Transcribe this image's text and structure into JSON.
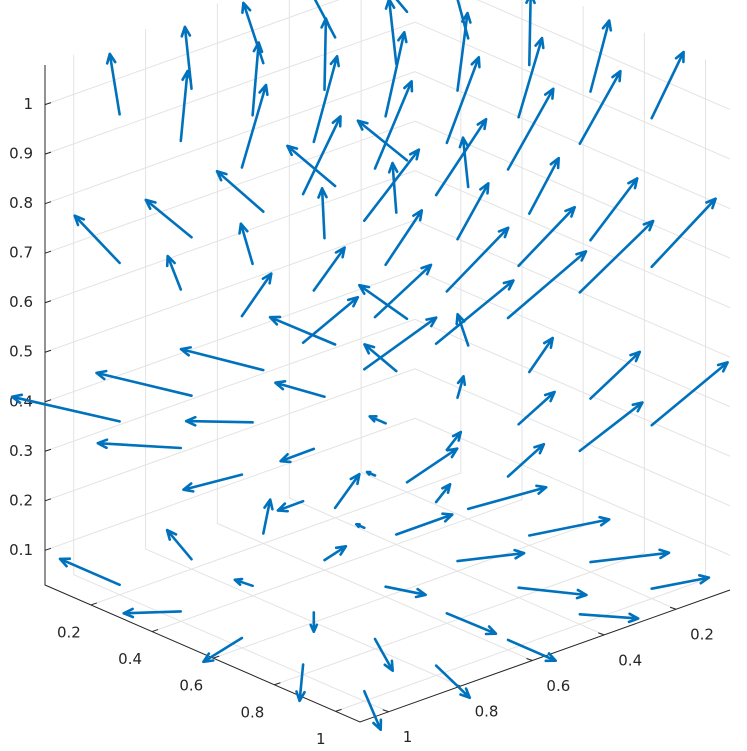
{
  "chart_data": {
    "type": "quiver3",
    "color": "#0072bd",
    "grid": true,
    "xlim": [
      0.05,
      1.08
    ],
    "ylim": [
      0.05,
      1.08
    ],
    "zlim": [
      0.03,
      1.08
    ],
    "xticks": [
      0.2,
      0.4,
      0.6,
      0.8,
      1
    ],
    "yticks": [
      0.2,
      0.4,
      0.6,
      0.8,
      1
    ],
    "zticks": [
      0.1,
      0.2,
      0.3,
      0.4,
      0.5,
      0.6,
      0.7,
      0.8,
      0.9,
      1
    ],
    "x": [
      0.2,
      0.2,
      0.2,
      0.2,
      0.2,
      0.4,
      0.4,
      0.4,
      0.4,
      0.4,
      0.6,
      0.6,
      0.6,
      0.6,
      0.6,
      0.8,
      0.8,
      0.8,
      0.8,
      0.8,
      1,
      1,
      1,
      1,
      1,
      0.2,
      0.2,
      0.2,
      0.2,
      0.2,
      0.4,
      0.4,
      0.4,
      0.4,
      0.4,
      0.6,
      0.6,
      0.6,
      0.6,
      0.6,
      0.8,
      0.8,
      0.8,
      0.8,
      0.8,
      1,
      1,
      1,
      1,
      1,
      0.2,
      0.2,
      0.2,
      0.2,
      0.2,
      0.4,
      0.4,
      0.4,
      0.4,
      0.4,
      0.6,
      0.6,
      0.6,
      0.6,
      0.6,
      0.8,
      0.8,
      0.8,
      0.8,
      0.8,
      1,
      1,
      1,
      1,
      1,
      0.2,
      0.2,
      0.2,
      0.2,
      0.2,
      0.4,
      0.4,
      0.4,
      0.4,
      0.4,
      0.6,
      0.6,
      0.6,
      0.6,
      0.6,
      0.8,
      0.8,
      0.8,
      0.8,
      0.8,
      1,
      1,
      1,
      1,
      1
    ],
    "y": [
      0.2,
      0.4,
      0.6,
      0.8,
      1,
      0.2,
      0.4,
      0.6,
      0.8,
      1,
      0.2,
      0.4,
      0.6,
      0.8,
      1,
      0.2,
      0.4,
      0.6,
      0.8,
      1,
      0.2,
      0.4,
      0.6,
      0.8,
      1,
      0.2,
      0.4,
      0.6,
      0.8,
      1,
      0.2,
      0.4,
      0.6,
      0.8,
      1,
      0.2,
      0.4,
      0.6,
      0.8,
      1,
      0.2,
      0.4,
      0.6,
      0.8,
      1,
      0.2,
      0.4,
      0.6,
      0.8,
      1,
      0.2,
      0.4,
      0.6,
      0.8,
      1,
      0.2,
      0.4,
      0.6,
      0.8,
      1,
      0.2,
      0.4,
      0.6,
      0.8,
      1,
      0.2,
      0.4,
      0.6,
      0.8,
      1,
      0.2,
      0.4,
      0.6,
      0.8,
      1,
      0.2,
      0.4,
      0.6,
      0.8,
      1,
      0.2,
      0.4,
      0.6,
      0.8,
      1,
      0.2,
      0.4,
      0.6,
      0.8,
      1,
      0.2,
      0.4,
      0.6,
      0.8,
      1,
      0.2,
      0.4,
      0.6,
      0.8,
      1
    ],
    "z": [
      0.05,
      0.05,
      0.05,
      0.05,
      0.05,
      0.05,
      0.05,
      0.05,
      0.05,
      0.05,
      0.05,
      0.05,
      0.05,
      0.05,
      0.05,
      0.05,
      0.05,
      0.05,
      0.05,
      0.05,
      0.05,
      0.05,
      0.05,
      0.05,
      0.05,
      0.38,
      0.38,
      0.38,
      0.38,
      0.38,
      0.38,
      0.38,
      0.38,
      0.38,
      0.38,
      0.38,
      0.38,
      0.38,
      0.38,
      0.38,
      0.38,
      0.38,
      0.38,
      0.38,
      0.38,
      0.38,
      0.38,
      0.38,
      0.38,
      0.38,
      0.7,
      0.7,
      0.7,
      0.7,
      0.7,
      0.7,
      0.7,
      0.7,
      0.7,
      0.7,
      0.7,
      0.7,
      0.7,
      0.7,
      0.7,
      0.7,
      0.7,
      0.7,
      0.7,
      0.7,
      0.7,
      0.7,
      0.7,
      0.7,
      0.7,
      1,
      1,
      1,
      1,
      1,
      1,
      1,
      1,
      1,
      1,
      1,
      1,
      1,
      1,
      1,
      1,
      1,
      1,
      1,
      1,
      1,
      1,
      1,
      1,
      1
    ],
    "u": [
      -0.05,
      -0.08,
      -0.1,
      -0.12,
      -0.15,
      0.02,
      0,
      -0.04,
      -0.08,
      -0.12,
      0.06,
      0.05,
      0.03,
      0,
      -0.05,
      0.08,
      0.1,
      0.1,
      0.08,
      0.05,
      0.05,
      0.1,
      0.12,
      0.12,
      0.1,
      -0.12,
      -0.14,
      -0.16,
      -0.18,
      -0.2,
      -0.05,
      -0.08,
      -0.1,
      -0.12,
      -0.15,
      0,
      -0.02,
      -0.04,
      -0.06,
      -0.1,
      0.03,
      0.02,
      0,
      -0.02,
      -0.04,
      0.05,
      0.04,
      0.02,
      0,
      -0.02,
      -0.1,
      -0.12,
      -0.14,
      -0.15,
      -0.16,
      -0.06,
      -0.08,
      -0.1,
      -0.1,
      -0.08,
      -0.02,
      -0.04,
      -0.05,
      -0.04,
      -0.02,
      0,
      0,
      -0.01,
      0,
      0.02,
      0.02,
      0.02,
      0.02,
      0.03,
      0.04,
      -0.08,
      -0.06,
      -0.05,
      -0.04,
      -0.06,
      -0.04,
      -0.03,
      -0.02,
      -0.02,
      -0.03,
      -0.02,
      -0.01,
      0,
      0,
      -0.01,
      0,
      0,
      0.01,
      0.01,
      0,
      0.01,
      0.02,
      0.02,
      0.02,
      0.02
    ],
    "v": [
      -0.15,
      -0.12,
      -0.1,
      -0.05,
      0,
      -0.15,
      -0.12,
      -0.08,
      -0.03,
      0.02,
      -0.12,
      -0.1,
      -0.06,
      0,
      0.04,
      -0.1,
      -0.06,
      -0.02,
      0.03,
      0.05,
      -0.08,
      -0.04,
      0,
      0.03,
      0.05,
      0,
      0.02,
      0.04,
      0.05,
      0.06,
      -0.02,
      0,
      0.02,
      0.04,
      0.05,
      -0.05,
      -0.03,
      0,
      0.02,
      0.04,
      -0.08,
      -0.06,
      -0.03,
      0,
      0.02,
      -0.12,
      -0.1,
      -0.06,
      -0.03,
      0,
      0.02,
      0,
      -0.02,
      -0.03,
      -0.04,
      -0.04,
      -0.06,
      -0.08,
      -0.06,
      -0.04,
      -0.08,
      -0.1,
      -0.12,
      -0.1,
      -0.08,
      -0.1,
      -0.12,
      -0.14,
      -0.12,
      -0.1,
      -0.12,
      -0.14,
      -0.15,
      -0.14,
      -0.12,
      0.02,
      0.01,
      0,
      -0.02,
      -0.03,
      0,
      -0.01,
      -0.02,
      -0.03,
      -0.04,
      -0.02,
      -0.03,
      -0.04,
      -0.05,
      -0.06,
      -0.04,
      -0.05,
      -0.06,
      -0.07,
      -0.08,
      -0.06,
      -0.07,
      -0.08,
      -0.09,
      -0.1
    ],
    "w": [
      0,
      0,
      0,
      0,
      0,
      0,
      0,
      -0.01,
      -0.02,
      -0.03,
      0.01,
      0,
      -0.02,
      -0.03,
      -0.04,
      0.01,
      0,
      -0.01,
      -0.02,
      -0.03,
      0.01,
      0.01,
      0,
      -0.01,
      -0.02,
      0.02,
      0.01,
      0,
      0,
      0,
      0.03,
      0.02,
      0,
      -0.02,
      -0.02,
      0.04,
      0.02,
      0,
      -0.03,
      -0.04,
      0.06,
      0.04,
      0.02,
      0,
      -0.02,
      0.08,
      0.06,
      0.04,
      0.02,
      0,
      0.04,
      0.03,
      0.02,
      0.01,
      0.02,
      0.05,
      0.04,
      0.03,
      0.02,
      0.02,
      0.06,
      0.05,
      0.04,
      0.03,
      0.04,
      0.07,
      0.06,
      0.06,
      0.05,
      0.05,
      0.08,
      0.08,
      0.07,
      0.07,
      0.06,
      0.06,
      0.07,
      0.08,
      0.08,
      0.07,
      0.08,
      0.09,
      0.1,
      0.1,
      0.09,
      0.1,
      0.11,
      0.12,
      0.12,
      0.11,
      0.1,
      0.11,
      0.12,
      0.12,
      0.1,
      0.09,
      0.1,
      0.11,
      0.1,
      0.09
    ]
  }
}
